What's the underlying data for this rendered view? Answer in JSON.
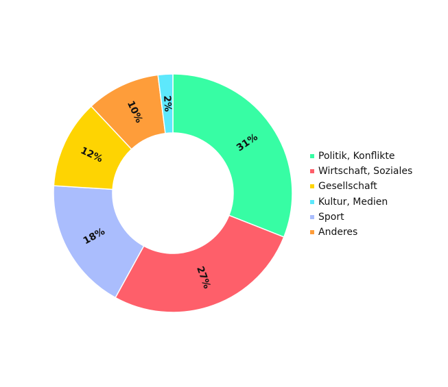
{
  "chart_data": {
    "type": "pie",
    "donut": true,
    "slices": [
      {
        "label": "Politik, Konflikte",
        "value": 31,
        "display": "31%",
        "color": "#37fda4"
      },
      {
        "label": "Wirtschaft, Soziales",
        "value": 27,
        "display": "27%",
        "color": "#fe5f6a"
      },
      {
        "label": "Sport",
        "value": 18,
        "display": "18%",
        "color": "#aabdfd"
      },
      {
        "label": "Gesellschaft",
        "value": 12,
        "display": "12%",
        "color": "#fed402"
      },
      {
        "label": "Anderes",
        "value": 10,
        "display": "10%",
        "color": "#fe9d3a"
      },
      {
        "label": "Kultur, Medien",
        "value": 2,
        "display": "2%",
        "color": "#5de8fc"
      }
    ],
    "legend": {
      "placement": "right",
      "entries": [
        {
          "label": "Politik, Konflikte",
          "color": "#37fda4"
        },
        {
          "label": "Wirtschaft, Soziales",
          "color": "#fe5f6a"
        },
        {
          "label": "Gesellschaft",
          "color": "#fed402"
        },
        {
          "label": "Kultur, Medien",
          "color": "#5de8fc"
        },
        {
          "label": "Sport",
          "color": "#aabdfd"
        },
        {
          "label": "Anderes",
          "color": "#fe9d3a"
        }
      ]
    }
  }
}
